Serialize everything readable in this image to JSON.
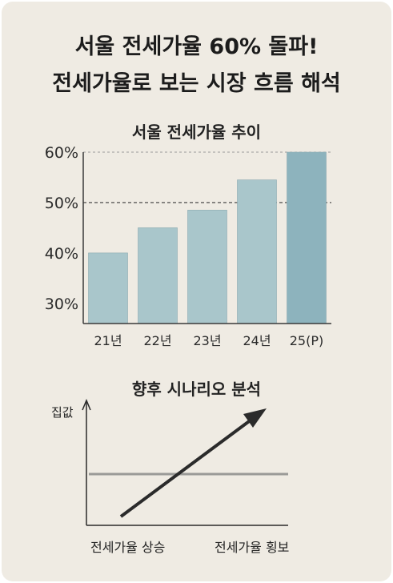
{
  "header": {
    "title_line1": "서울 전세가율 60% 돌파!",
    "title_line2": "전세가율로 보는 시장 흐름 해석"
  },
  "chart_data": {
    "type": "bar",
    "title": "서울 전세가율 추이",
    "categories": [
      "21년",
      "22년",
      "23년",
      "24년",
      "25(P)"
    ],
    "values": [
      40,
      45,
      48.5,
      54.5,
      60
    ],
    "ylim": [
      26,
      60
    ],
    "yticks": [
      30,
      40,
      50,
      60
    ],
    "ytick_labels": [
      "30%",
      "40%",
      "50%",
      "60%"
    ],
    "highlight_line": 50,
    "bar_color": "#a9c6cb",
    "highlight_bar_color": "#8db3bd",
    "xlabel": "",
    "ylabel": ""
  },
  "scenario": {
    "title": "향후 시나리오 분석",
    "y_axis_label": "집값",
    "rising_label": "전세가율 상승",
    "flat_label": "전세가율 횡보",
    "arrow_color": "#2b2b2b",
    "flat_line_color": "#9a9a97"
  }
}
